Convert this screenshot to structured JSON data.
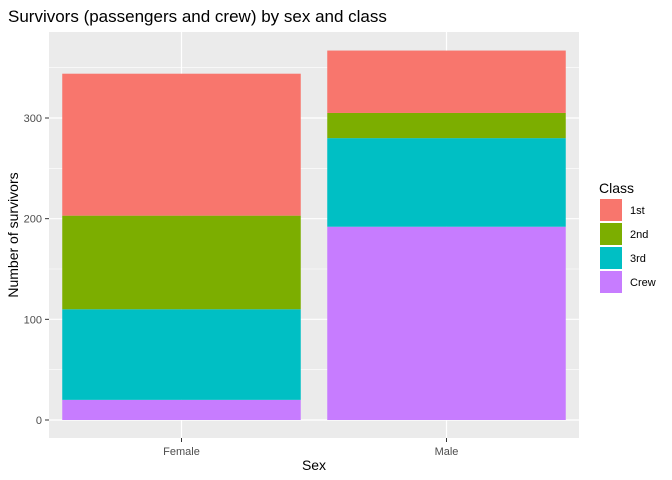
{
  "chart_data": {
    "type": "bar",
    "stacked": true,
    "title": "Survivors (passengers and crew) by sex and class",
    "xlabel": "Sex",
    "ylabel": "Number of survivors",
    "categories": [
      "Female",
      "Male"
    ],
    "ylim": [
      0,
      380
    ],
    "yticks": [
      0,
      100,
      200,
      300
    ],
    "grid": true,
    "legend": {
      "title": "Class",
      "position": "right"
    },
    "series": [
      {
        "name": "Crew",
        "color": "#C77CFF",
        "values": [
          20,
          192
        ]
      },
      {
        "name": "3rd",
        "color": "#00BFC4",
        "values": [
          90,
          88
        ]
      },
      {
        "name": "2nd",
        "color": "#7CAE00",
        "values": [
          93,
          25
        ]
      },
      {
        "name": "1st",
        "color": "#F8766D",
        "values": [
          141,
          62
        ]
      }
    ],
    "legend_order": [
      "1st",
      "2nd",
      "3rd",
      "Crew"
    ]
  }
}
